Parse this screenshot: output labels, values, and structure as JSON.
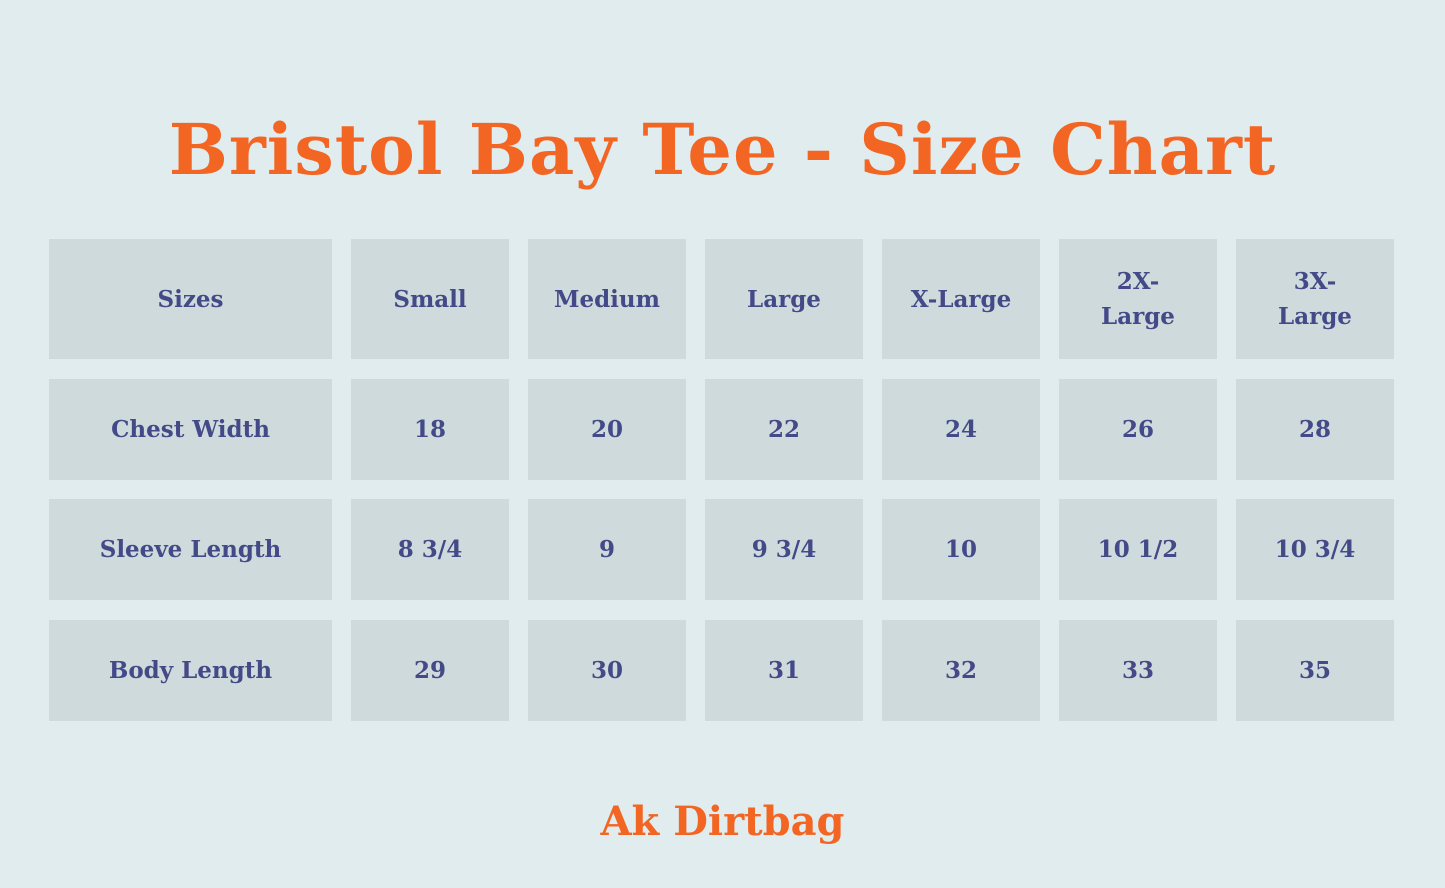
{
  "title": "Bristol Bay Tee - Size Chart",
  "table": {
    "headers": [
      "Sizes",
      "Small",
      "Medium",
      "Large",
      "X-Large",
      "2X-Large",
      "3X-Large"
    ],
    "rows": [
      [
        "Chest Width",
        "18",
        "20",
        "22",
        "24",
        "26",
        "28"
      ],
      [
        "Sleeve Length",
        "8 3/4",
        "9",
        "9 3/4",
        "10",
        "10 1/2",
        "10 3/4"
      ],
      [
        "Body Length",
        "29",
        "30",
        "31",
        "32",
        "33",
        "35"
      ]
    ]
  },
  "footer": "Ak Dirtbag",
  "colors": {
    "accent": "#f26522",
    "text": "#434a87",
    "cell": "#cedadc",
    "background": "#e0ecee"
  }
}
